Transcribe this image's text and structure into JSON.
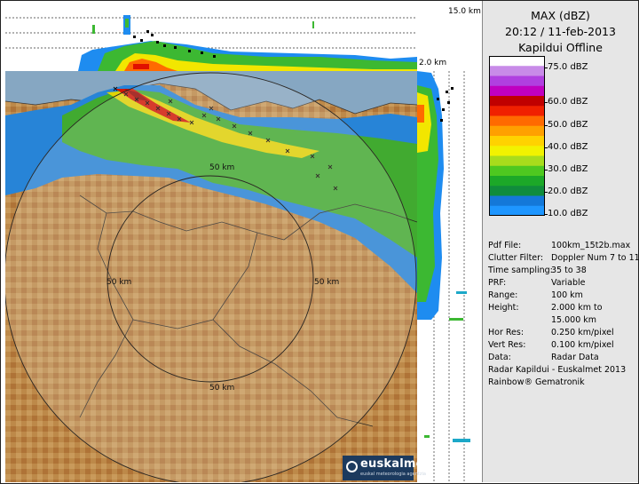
{
  "product": {
    "title": "MAX (dBZ)",
    "datetime": "20:12 / 11-feb-2013",
    "radar_status": "Kapildui Offline"
  },
  "scale": {
    "colors": [
      "#ffffff",
      "#c88be8",
      "#b040e0",
      "#c000c0",
      "#c00000",
      "#f02000",
      "#ff6a00",
      "#ffa000",
      "#ffd200",
      "#f2f200",
      "#a8dc1c",
      "#4ec820",
      "#1ca828",
      "#108c3c",
      "#1478d8",
      "#1e96ff"
    ],
    "labels": [
      "75.0 dBZ",
      "60.0 dBZ",
      "50.0 dBZ",
      "40.0 dBZ",
      "30.0 dBZ",
      "20.0 dBZ",
      "10.0 dBZ"
    ]
  },
  "metadata": [
    {
      "key": "Pdf File:",
      "value": "100km_15t2b.max"
    },
    {
      "key": "Clutter Filter:",
      "value": "Doppler Num 7 to 11"
    },
    {
      "key": "Time sampling:",
      "value": "35 to 38"
    },
    {
      "key": "PRF:",
      "value": "Variable"
    },
    {
      "key": "Range:",
      "value": "100 km"
    },
    {
      "key": "Height:",
      "value": "2.000 km to"
    },
    {
      "key": "",
      "value": "15.000 km"
    },
    {
      "key": "Hor Res:",
      "value": "0.250 km/pixel"
    },
    {
      "key": "Vert Res:",
      "value": "0.100 km/pixel"
    },
    {
      "key": "Data:",
      "value": "Radar Data"
    }
  ],
  "credits": [
    "Radar Kapildui - Euskalmet 2013",
    "Rainbow® Gematronik"
  ],
  "section_labels": {
    "top_height": "15.0 km",
    "bottom_height": "2.0 km"
  },
  "range_rings": {
    "top": "50 km",
    "left": "50 km",
    "right": "50 km",
    "bottom": "50 km"
  },
  "logo": {
    "name": "euskalmet",
    "subtitle": "euskal meteorologia agentzia"
  }
}
